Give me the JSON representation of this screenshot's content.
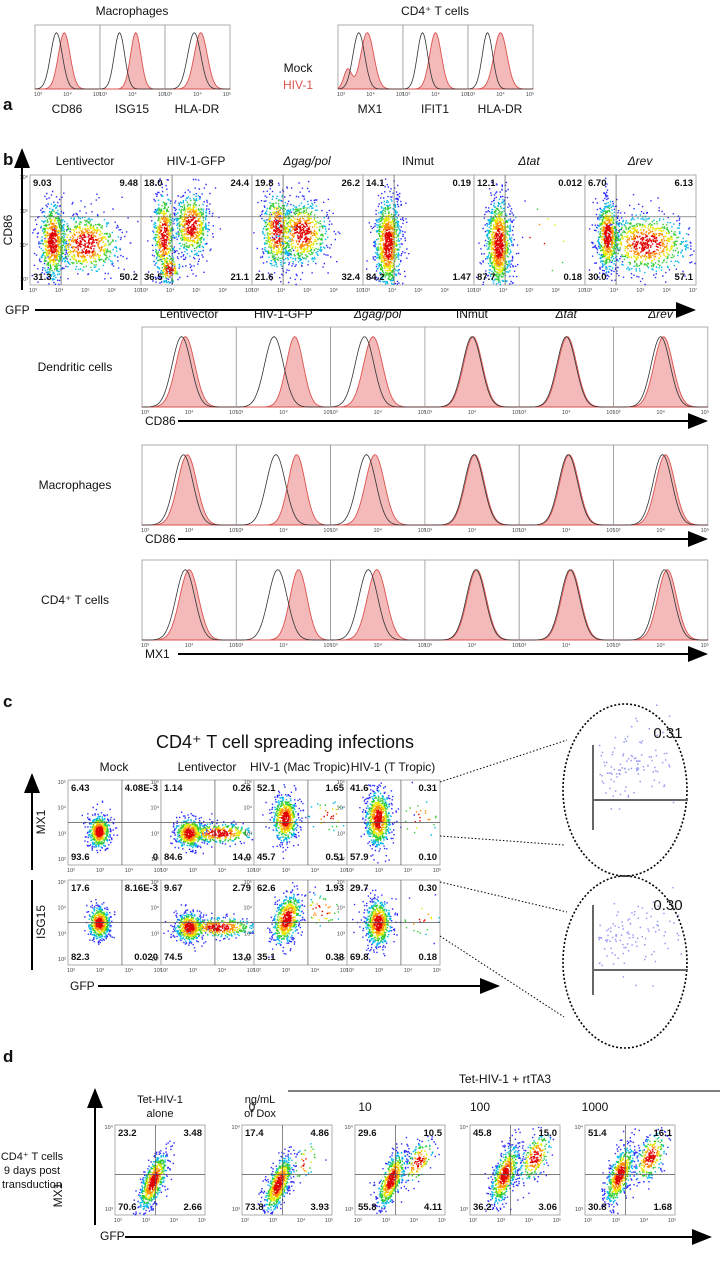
{
  "panel_a": {
    "letter": "a",
    "groups": [
      {
        "title": "Macrophages",
        "markers": [
          "CD86",
          "ISG15",
          "HLA-DR"
        ]
      },
      {
        "title": "CD4⁺ T cells",
        "markers": [
          "MX1",
          "IFIT1",
          "HLA-DR"
        ]
      }
    ],
    "legend": [
      "Mock",
      "HIV-1"
    ],
    "xticks": [
      "10³",
      "10⁴",
      "10⁵"
    ]
  },
  "panel_b": {
    "letter": "b",
    "dot_plots": {
      "y_label": "CD86",
      "x_label": "GFP",
      "yticks": [
        "10³",
        "10⁴",
        "10⁵",
        "10⁶"
      ],
      "xticks": [
        "10³",
        "10⁴",
        "10⁵",
        "10⁶",
        "10⁷"
      ],
      "columns": [
        {
          "title": "Lentivector",
          "quadrants": [
            "9.03",
            "9.48",
            "31.3",
            "50.2"
          ]
        },
        {
          "title": "HIV-1-GFP",
          "quadrants": [
            "18.0",
            "24.4",
            "36.5",
            "21.1"
          ]
        },
        {
          "title": "Δgag/pol",
          "quadrants": [
            "19.8",
            "26.2",
            "21.6",
            "32.4"
          ]
        },
        {
          "title": "INmut",
          "quadrants": [
            "14.1",
            "0.19",
            "84.2",
            "1.47"
          ]
        },
        {
          "title": "Δtat",
          "quadrants": [
            "12.1",
            "0.012",
            "87.7",
            "0.18"
          ]
        },
        {
          "title": "Δrev",
          "quadrants": [
            "6.70",
            "6.13",
            "30.0",
            "57.1"
          ]
        }
      ]
    },
    "histograms": {
      "columns": [
        "Lentivector",
        "HIV-1-GFP",
        "Δgag/pol",
        "INmut",
        "Δtat",
        "Δrev"
      ],
      "xticks": [
        "10³",
        "10⁴",
        "10⁵"
      ],
      "rows": [
        {
          "label": "Dendritic cells",
          "marker": "CD86"
        },
        {
          "label": "Macrophages",
          "marker": "CD86"
        },
        {
          "label": "CD4⁺ T cells",
          "marker": "MX1"
        }
      ]
    }
  },
  "panel_c": {
    "letter": "c",
    "title": "CD4⁺ T cell spreading infections",
    "columns": [
      "Mock",
      "Lentivector",
      "HIV-1 (Mac Tropic)",
      "HIV-1 (T Tropic)"
    ],
    "x_label": "GFP",
    "xticks": [
      "10²",
      "10³",
      "10⁴",
      "10⁵"
    ],
    "yticks": [
      "10²",
      "10³",
      "10⁴",
      "10⁵"
    ],
    "rows": [
      {
        "label": "MX1",
        "quadrants": [
          [
            "6.43",
            "4.08E-3",
            "93.6",
            "0"
          ],
          [
            "1.14",
            "0.26",
            "84.6",
            "14.0"
          ],
          [
            "52.1",
            "1.65",
            "45.7",
            "0.51"
          ],
          [
            "41.6",
            "0.31",
            "57.9",
            "0.10"
          ]
        ]
      },
      {
        "label": "ISG15",
        "quadrants": [
          [
            "17.6",
            "8.16E-3",
            "82.3",
            "0.020"
          ],
          [
            "9.67",
            "2.79",
            "74.5",
            "13.0"
          ],
          [
            "62.6",
            "1.93",
            "35.1",
            "0.38"
          ],
          [
            "29.7",
            "0.30",
            "69.8",
            "0.18"
          ]
        ]
      }
    ],
    "zoom": [
      "0.31",
      "0.30"
    ]
  },
  "panel_d": {
    "letter": "d",
    "header": "Tet-HIV-1 + rtTA3",
    "y_label": "MX1",
    "x_label": "GFP",
    "side_label": [
      "CD4⁺ T cells",
      "9 days post",
      "transduction"
    ],
    "dox_label": [
      "ng/mL",
      "of Dox"
    ],
    "xticks": [
      "10²",
      "10³",
      "10⁴",
      "10⁵"
    ],
    "yticks": [
      "10³",
      "10⁴"
    ],
    "plots": [
      {
        "title": [
          "Tet-HIV-1",
          "alone"
        ],
        "quadrants": [
          "23.2",
          "3.48",
          "70.6",
          "2.66"
        ]
      },
      {
        "dox": 0,
        "quadrants": [
          "17.4",
          "4.86",
          "73.8",
          "3.93"
        ]
      },
      {
        "dox": 10,
        "quadrants": [
          "29.6",
          "10.5",
          "55.8",
          "4.11"
        ]
      },
      {
        "dox": 100,
        "quadrants": [
          "45.8",
          "15.0",
          "36.2",
          "3.06"
        ]
      },
      {
        "dox": 1000,
        "quadrants": [
          "51.4",
          "16.1",
          "30.8",
          "1.68"
        ]
      }
    ]
  }
}
